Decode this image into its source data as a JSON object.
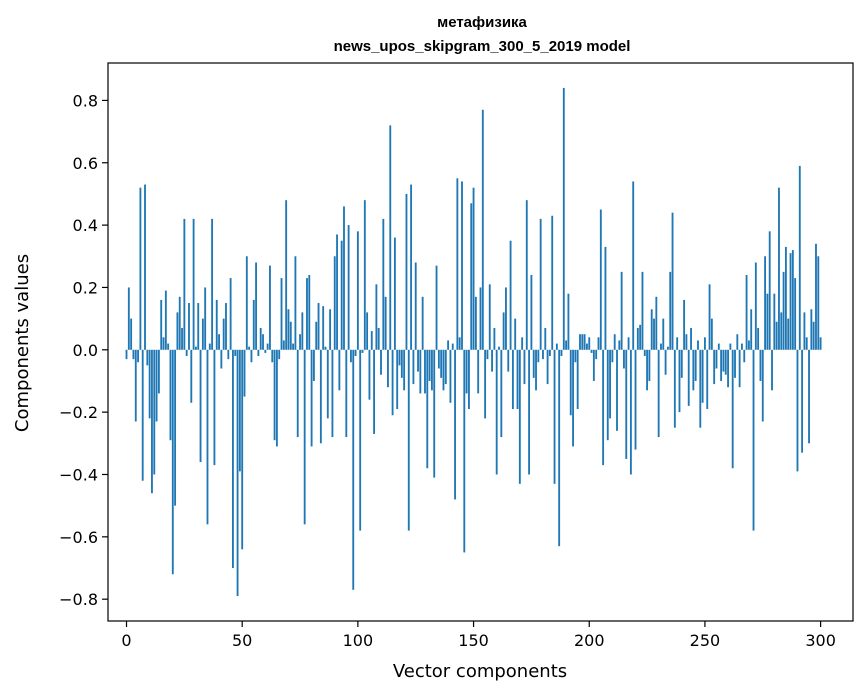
{
  "chart_data": {
    "type": "bar",
    "title": "метафизика",
    "subtitle": "news_upos_skipgram_300_5_2019 model",
    "xlabel": "Vector components",
    "ylabel": "Components values",
    "xlim": [
      -8,
      314
    ],
    "ylim": [
      -0.87,
      0.92
    ],
    "xticks": [
      0,
      50,
      100,
      150,
      200,
      250,
      300
    ],
    "yticks": [
      -0.8,
      -0.6,
      -0.4,
      -0.2,
      0.0,
      0.2,
      0.4,
      0.6,
      0.8
    ],
    "xtick_labels": [
      "0",
      "50",
      "100",
      "150",
      "200",
      "250",
      "300"
    ],
    "ytick_labels": [
      "−0.8",
      "−0.6",
      "−0.4",
      "−0.2",
      "0.0",
      "0.2",
      "0.4",
      "0.6",
      "0.8"
    ],
    "grid": false,
    "bar_color": "#1f77b4",
    "values": [
      -0.03,
      0.2,
      0.1,
      -0.03,
      -0.23,
      -0.04,
      0.52,
      -0.42,
      0.53,
      -0.05,
      -0.22,
      -0.46,
      -0.4,
      -0.23,
      -0.14,
      0.16,
      0.04,
      0.19,
      0.02,
      -0.29,
      -0.72,
      -0.5,
      0.12,
      0.17,
      0.07,
      0.42,
      -0.02,
      0.15,
      -0.17,
      0.42,
      0.01,
      0.15,
      -0.36,
      0.1,
      0.2,
      -0.56,
      0.02,
      0.42,
      -0.37,
      0.16,
      0.05,
      -0.06,
      0.1,
      0.15,
      -0.03,
      0.23,
      -0.7,
      -0.02,
      -0.79,
      -0.39,
      -0.64,
      -0.15,
      0.3,
      0.01,
      -0.04,
      0.16,
      0.28,
      -0.02,
      0.07,
      0.05,
      -0.01,
      0.02,
      0.27,
      -0.04,
      -0.29,
      -0.31,
      -0.03,
      0.23,
      0.03,
      0.48,
      0.13,
      0.09,
      0.02,
      0.3,
      -0.28,
      0.05,
      0.12,
      -0.56,
      0.23,
      0.24,
      -0.31,
      -0.1,
      0.09,
      0.15,
      -0.3,
      0.14,
      0.01,
      -0.22,
      0.13,
      -0.28,
      0.3,
      0.37,
      -0.13,
      0.35,
      0.46,
      -0.28,
      0.4,
      -0.04,
      -0.77,
      -0.02,
      0.38,
      -0.58,
      -0.01,
      0.48,
      0.12,
      -0.16,
      0.06,
      -0.27,
      0.21,
      0.07,
      -0.08,
      0.42,
      0.17,
      -0.12,
      0.72,
      -0.21,
      0.36,
      -0.19,
      -0.05,
      -0.09,
      -0.13,
      0.5,
      -0.58,
      0.53,
      -0.11,
      0.28,
      -0.07,
      -0.14,
      0.17,
      -0.14,
      -0.38,
      -0.1,
      -0.13,
      -0.41,
      0.27,
      -0.06,
      -0.09,
      -0.13,
      -0.11,
      0.03,
      -0.17,
      0.02,
      -0.48,
      0.55,
      0.04,
      0.54,
      -0.65,
      -0.14,
      -0.19,
      0.47,
      0.52,
      0.17,
      -0.14,
      0.2,
      0.77,
      -0.22,
      -0.03,
      0.21,
      -0.07,
      0.07,
      -0.4,
      0.01,
      -0.28,
      0.12,
      0.2,
      -0.07,
      0.35,
      -0.19,
      0.1,
      -0.19,
      -0.43,
      0.04,
      -0.11,
      0.48,
      -0.4,
      0.24,
      -0.09,
      -0.13,
      -0.04,
      0.42,
      -0.03,
      0.07,
      -0.11,
      -0.02,
      0.43,
      -0.43,
      0.02,
      -0.63,
      -0.02,
      0.84,
      0.03,
      0.18,
      -0.21,
      -0.31,
      -0.04,
      -0.19,
      0.05,
      0.05,
      0.05,
      0.02,
      0.04,
      -0.01,
      -0.1,
      -0.03,
      0.04,
      0.45,
      -0.37,
      0.33,
      -0.29,
      -0.22,
      -0.04,
      0.05,
      -0.26,
      0.03,
      0.25,
      -0.06,
      -0.35,
      0.04,
      -0.4,
      0.54,
      -0.32,
      0.07,
      0.08,
      0.25,
      -0.02,
      -0.13,
      -0.1,
      0.13,
      0.1,
      0.17,
      -0.28,
      0.02,
      0.1,
      -0.08,
      0.01,
      0.25,
      0.44,
      -0.25,
      0.04,
      -0.2,
      -0.09,
      0.16,
      0.05,
      -0.18,
      0.07,
      -0.13,
      -0.1,
      0.03,
      -0.25,
      -0.17,
      0.04,
      -0.19,
      0.21,
      0.1,
      -0.11,
      -0.06,
      0.02,
      -0.1,
      -0.07,
      -0.08,
      -0.12,
      0.02,
      -0.38,
      -0.09,
      0.05,
      -0.12,
      0.02,
      -0.04,
      0.24,
      0.03,
      0.13,
      -0.58,
      0.28,
      0.07,
      -0.1,
      -0.23,
      0.3,
      0.18,
      0.38,
      -0.13,
      0.18,
      0.09,
      0.52,
      0.12,
      0.25,
      0.33,
      0.1,
      0.31,
      0.32,
      0.23,
      -0.39,
      0.59,
      -0.33,
      0.12,
      0.04,
      -0.3,
      0.13,
      0.09,
      0.34,
      0.3,
      0.04
    ]
  }
}
